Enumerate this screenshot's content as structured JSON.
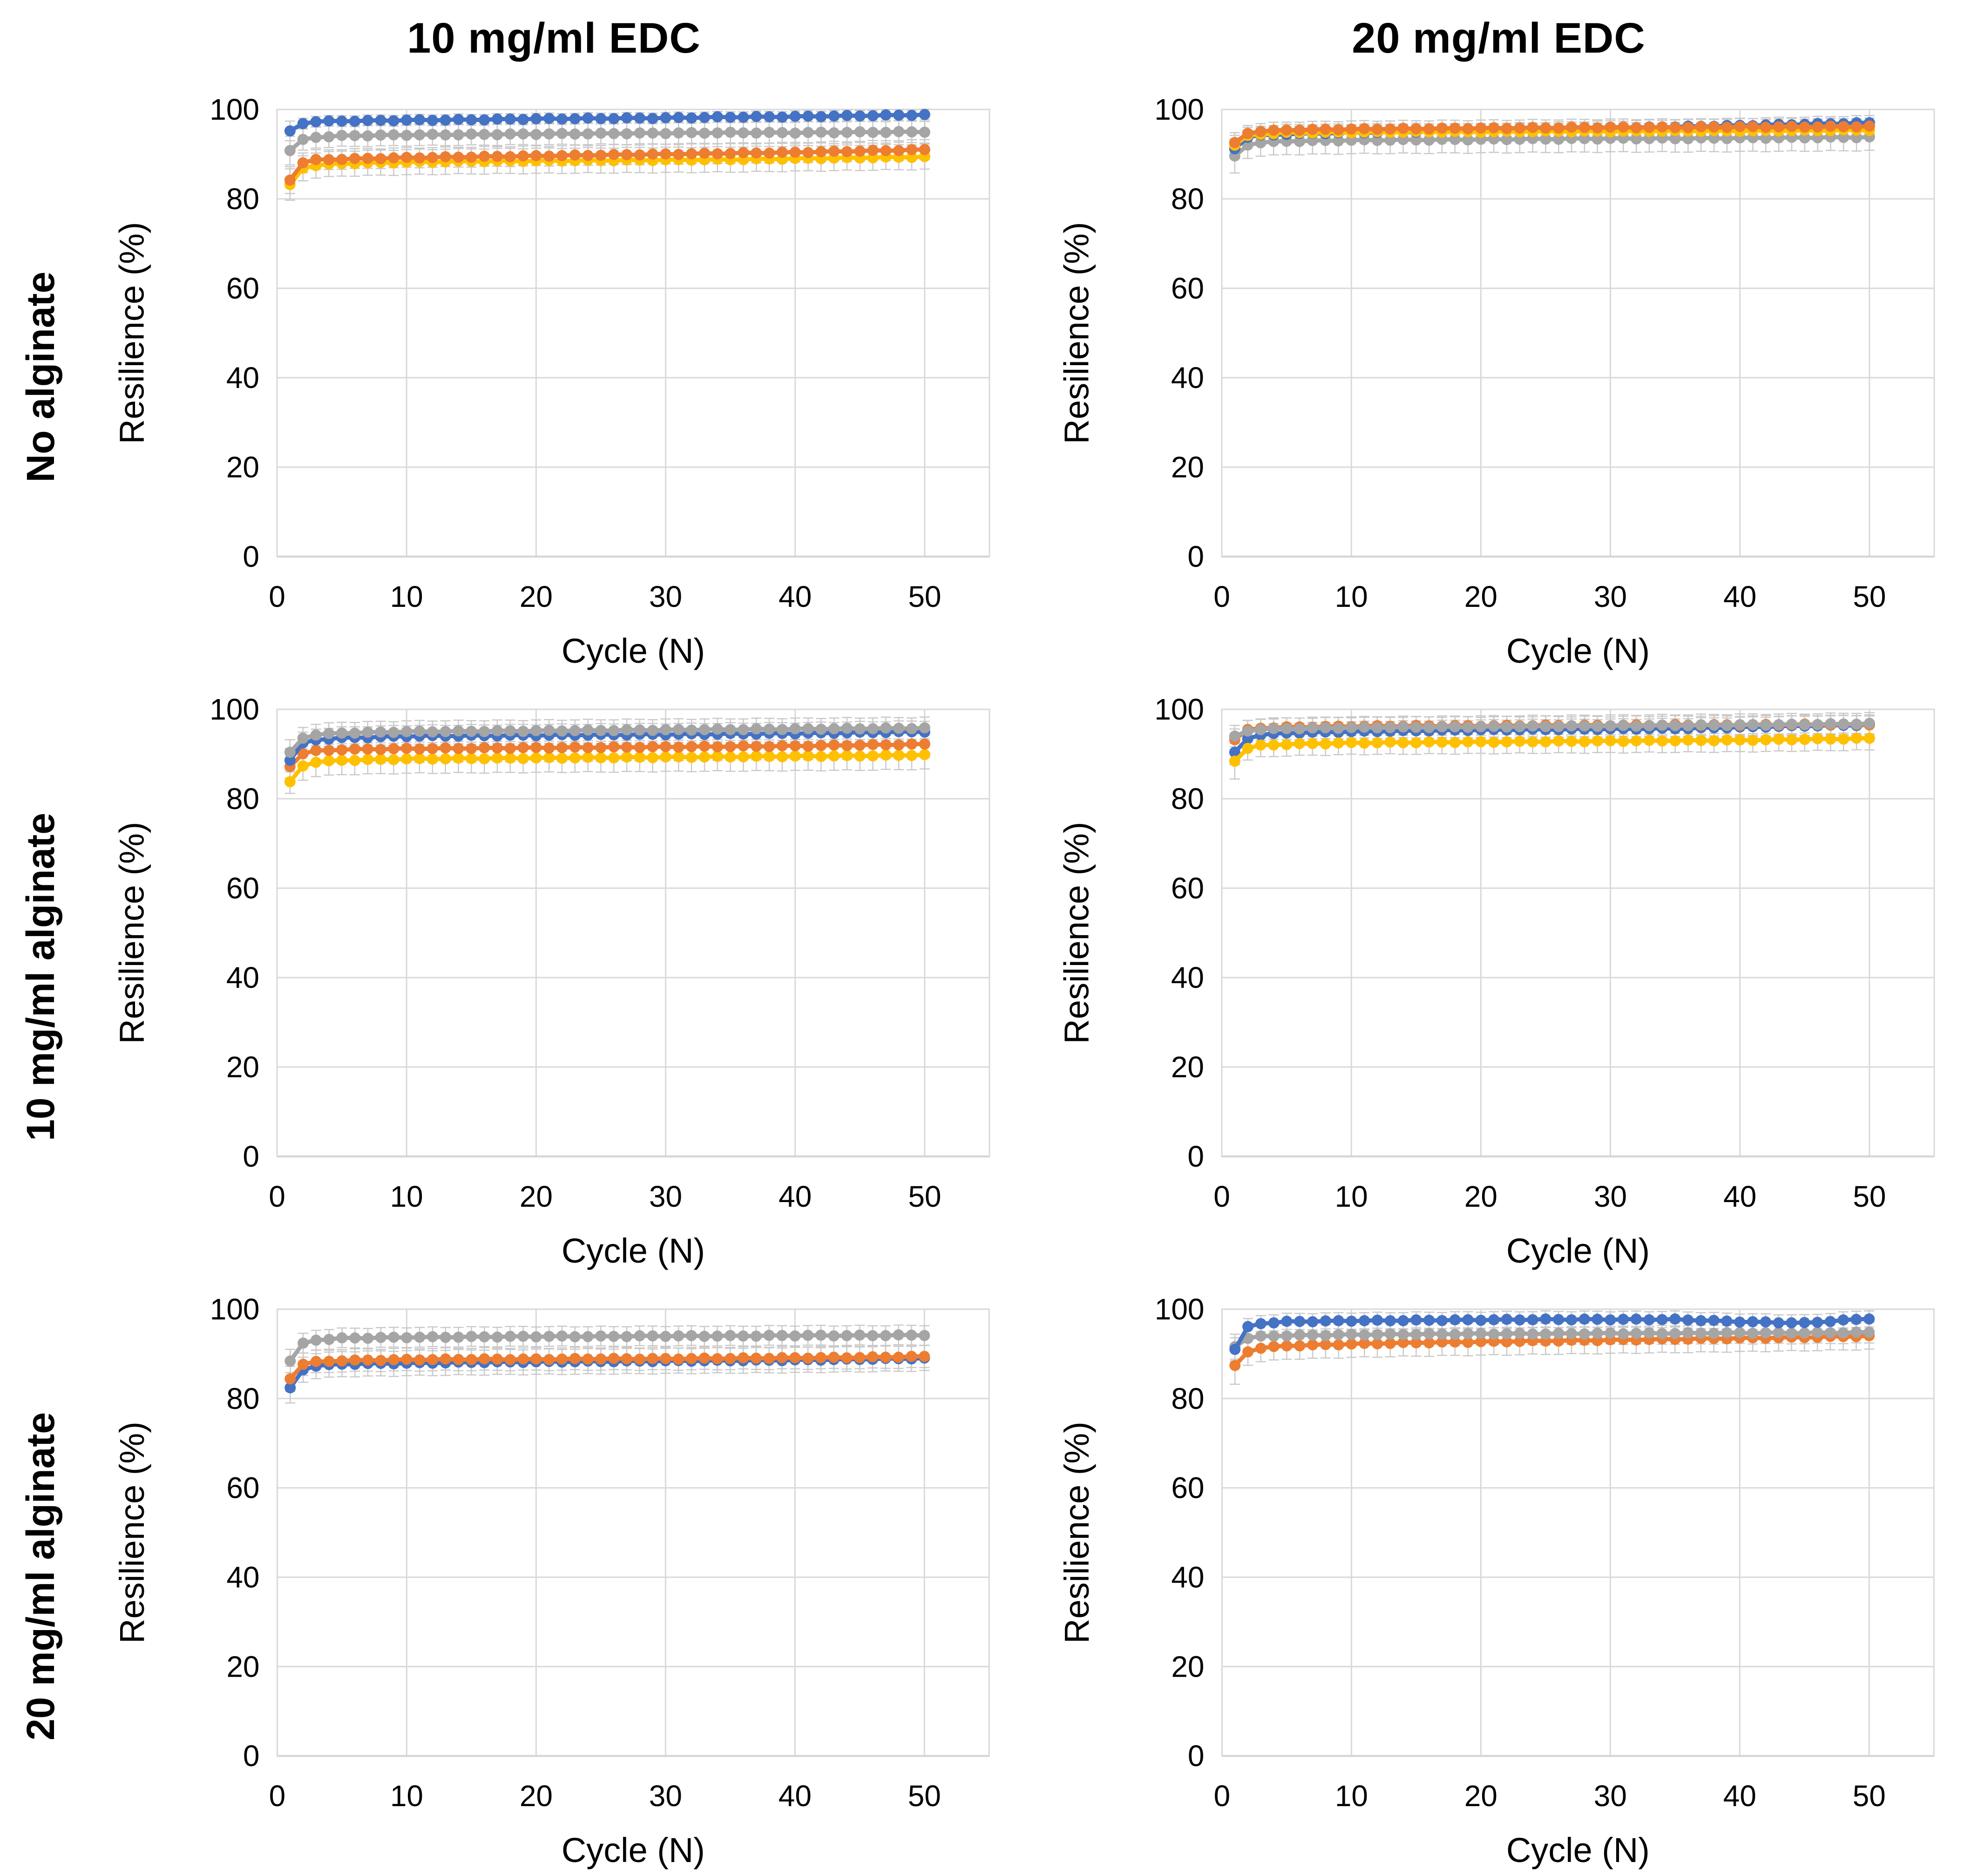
{
  "header": {
    "column_titles": [
      "10 mg/ml EDC",
      "20 mg/ml EDC"
    ]
  },
  "row_labels": [
    "No alginate",
    "10 mg/ml alginate",
    "20 mg/ml alginate"
  ],
  "axis": {
    "x_label": "Cycle (N)",
    "y_label": "Resilience (%)",
    "x_ticks": [
      0,
      10,
      20,
      30,
      40,
      50
    ],
    "y_ticks": [
      0,
      20,
      40,
      60,
      80,
      100
    ]
  },
  "colors": {
    "blue": "#4472C4",
    "orange": "#ED7D31",
    "gray": "#A5A5A5",
    "yellow": "#FFC000",
    "error_bar": "#C9C9C9",
    "gridline": "#D9D9D9",
    "axis_line": "#BFBFBF"
  },
  "render_hints": {
    "marker_jitter": 0.1,
    "legend": "none",
    "grid": "on"
  },
  "chart_data": [
    {
      "type": "line",
      "row": "No alginate",
      "column": "10 mg/ml EDC",
      "x_label": "Cycle (N)",
      "y_label": "Resilience (%)",
      "xlim": [
        0,
        55
      ],
      "ylim": [
        0,
        100
      ],
      "x_ticks": [
        0,
        10,
        20,
        30,
        40,
        50
      ],
      "y_ticks": [
        0,
        20,
        40,
        60,
        80,
        100
      ],
      "n_cycles": 50,
      "anchor_cycles": [
        1,
        2,
        3,
        5,
        10,
        15,
        20,
        25,
        30,
        35,
        40,
        45,
        50
      ],
      "series": [
        {
          "name": "yellow",
          "color_key": "yellow",
          "err": 2.8,
          "err_first": 3.5,
          "values": [
            83.2,
            86.9,
            87.5,
            87.9,
            88.2,
            88.4,
            88.5,
            88.6,
            88.7,
            88.8,
            89.0,
            89.2,
            89.4
          ]
        },
        {
          "name": "orange",
          "color_key": "orange",
          "err": 2.2,
          "err_first": 3.0,
          "values": [
            84.2,
            88.1,
            88.7,
            88.9,
            89.2,
            89.4,
            89.6,
            89.8,
            90.0,
            90.2,
            90.4,
            90.7,
            91.0
          ]
        },
        {
          "name": "gray",
          "color_key": "gray",
          "err": 2.4,
          "err_first": 3.2,
          "values": [
            90.8,
            93.2,
            93.8,
            94.1,
            94.3,
            94.4,
            94.5,
            94.6,
            94.7,
            94.8,
            94.8,
            94.9,
            95.0
          ]
        },
        {
          "name": "blue",
          "color_key": "blue",
          "err": 1.2,
          "err_first": 2.2,
          "values": [
            95.2,
            96.9,
            97.3,
            97.4,
            97.6,
            97.7,
            97.9,
            98.0,
            98.1,
            98.3,
            98.4,
            98.6,
            98.8
          ]
        }
      ]
    },
    {
      "type": "line",
      "row": "No alginate",
      "column": "20 mg/ml EDC",
      "x_label": "Cycle (N)",
      "y_label": "Resilience (%)",
      "xlim": [
        0,
        55
      ],
      "ylim": [
        0,
        100
      ],
      "x_ticks": [
        0,
        10,
        20,
        30,
        40,
        50
      ],
      "y_ticks": [
        0,
        20,
        40,
        60,
        80,
        100
      ],
      "n_cycles": 50,
      "anchor_cycles": [
        1,
        2,
        3,
        5,
        10,
        15,
        20,
        25,
        30,
        35,
        40,
        45,
        50
      ],
      "series": [
        {
          "name": "gray",
          "color_key": "gray",
          "err": 3.0,
          "err_first": 3.8,
          "values": [
            89.6,
            92.1,
            92.6,
            92.9,
            93.1,
            93.2,
            93.3,
            93.4,
            93.5,
            93.5,
            93.6,
            93.7,
            93.8
          ]
        },
        {
          "name": "blue",
          "color_key": "blue",
          "err": 1.6,
          "err_first": 2.2,
          "values": [
            91.2,
            93.8,
            94.2,
            94.5,
            94.8,
            95.0,
            95.2,
            95.5,
            95.8,
            96.1,
            96.4,
            96.7,
            97.0
          ]
        },
        {
          "name": "yellow",
          "color_key": "yellow",
          "err": 1.8,
          "err_first": 2.2,
          "values": [
            92.0,
            94.1,
            94.5,
            94.8,
            94.9,
            95.0,
            95.0,
            95.1,
            95.1,
            95.2,
            95.2,
            95.3,
            95.4
          ]
        },
        {
          "name": "orange",
          "color_key": "orange",
          "err": 1.8,
          "err_first": 2.2,
          "values": [
            92.6,
            94.7,
            95.1,
            95.4,
            95.6,
            95.7,
            95.8,
            95.9,
            96.0,
            96.0,
            96.1,
            96.1,
            96.2
          ]
        }
      ]
    },
    {
      "type": "line",
      "row": "10 mg/ml alginate",
      "column": "10 mg/ml EDC",
      "x_label": "Cycle (N)",
      "y_label": "Resilience (%)",
      "xlim": [
        0,
        55
      ],
      "ylim": [
        0,
        100
      ],
      "x_ticks": [
        0,
        10,
        20,
        30,
        40,
        50
      ],
      "y_ticks": [
        0,
        20,
        40,
        60,
        80,
        100
      ],
      "n_cycles": 50,
      "anchor_cycles": [
        1,
        2,
        3,
        5,
        10,
        15,
        20,
        25,
        30,
        35,
        40,
        45,
        50
      ],
      "series": [
        {
          "name": "yellow",
          "color_key": "yellow",
          "err": 3.2,
          "err_first": 2.6,
          "values": [
            83.8,
            87.4,
            88.2,
            88.6,
            88.9,
            89.0,
            89.1,
            89.2,
            89.3,
            89.4,
            89.5,
            89.6,
            89.8
          ]
        },
        {
          "name": "orange",
          "color_key": "orange",
          "err": 3.0,
          "err_first": 2.6,
          "values": [
            87.2,
            90.1,
            90.7,
            91.0,
            91.2,
            91.3,
            91.4,
            91.5,
            91.6,
            91.7,
            91.8,
            92.0,
            92.2
          ]
        },
        {
          "name": "blue",
          "color_key": "blue",
          "err": 2.4,
          "err_first": 2.6,
          "values": [
            88.6,
            92.4,
            93.2,
            93.6,
            94.0,
            94.1,
            94.2,
            94.3,
            94.4,
            94.5,
            94.6,
            94.8,
            95.0
          ]
        },
        {
          "name": "gray",
          "color_key": "gray",
          "err": 2.4,
          "err_first": 2.8,
          "values": [
            90.4,
            93.6,
            94.3,
            94.7,
            95.0,
            95.1,
            95.2,
            95.3,
            95.4,
            95.5,
            95.6,
            95.7,
            95.8
          ]
        }
      ]
    },
    {
      "type": "line",
      "row": "10 mg/ml alginate",
      "column": "20 mg/ml EDC",
      "x_label": "Cycle (N)",
      "y_label": "Resilience (%)",
      "xlim": [
        0,
        55
      ],
      "ylim": [
        0,
        100
      ],
      "x_ticks": [
        0,
        10,
        20,
        30,
        40,
        50
      ],
      "y_ticks": [
        0,
        20,
        40,
        60,
        80,
        100
      ],
      "n_cycles": 50,
      "anchor_cycles": [
        1,
        2,
        3,
        5,
        10,
        15,
        20,
        25,
        30,
        35,
        40,
        45,
        50
      ],
      "series": [
        {
          "name": "blue",
          "color_key": "blue",
          "err": 2.2,
          "err_first": 2.8,
          "values": [
            90.4,
            93.5,
            94.3,
            94.7,
            95.0,
            95.2,
            95.4,
            95.5,
            95.6,
            95.7,
            96.0,
            96.3,
            96.5
          ]
        },
        {
          "name": "yellow",
          "color_key": "yellow",
          "err": 2.6,
          "err_first": 4.0,
          "values": [
            88.4,
            91.3,
            91.9,
            92.2,
            92.5,
            92.6,
            92.7,
            92.8,
            92.9,
            93.0,
            93.1,
            93.3,
            93.5
          ]
        },
        {
          "name": "orange",
          "color_key": "orange",
          "err": 2.0,
          "err_first": 2.4,
          "values": [
            93.2,
            95.4,
            95.8,
            96.0,
            96.2,
            96.3,
            96.3,
            96.4,
            96.4,
            96.5,
            96.5,
            96.6,
            96.6
          ]
        },
        {
          "name": "gray",
          "color_key": "gray",
          "err": 2.4,
          "err_first": 2.4,
          "values": [
            94.0,
            95.2,
            95.5,
            95.7,
            95.9,
            96.0,
            96.1,
            96.2,
            96.3,
            96.4,
            96.5,
            96.6,
            96.8
          ]
        }
      ]
    },
    {
      "type": "line",
      "row": "20 mg/ml alginate",
      "column": "10 mg/ml EDC",
      "x_label": "Cycle (N)",
      "y_label": "Resilience (%)",
      "xlim": [
        0,
        55
      ],
      "ylim": [
        0,
        100
      ],
      "x_ticks": [
        0,
        10,
        20,
        30,
        40,
        50
      ],
      "y_ticks": [
        0,
        20,
        40,
        60,
        80,
        100
      ],
      "n_cycles": 50,
      "anchor_cycles": [
        1,
        2,
        3,
        5,
        10,
        15,
        20,
        25,
        30,
        35,
        40,
        45,
        50
      ],
      "series": [
        {
          "name": "blue",
          "color_key": "blue",
          "err": 2.8,
          "err_first": 3.4,
          "values": [
            82.4,
            86.5,
            87.3,
            87.7,
            87.9,
            88.1,
            88.2,
            88.3,
            88.4,
            88.5,
            88.6,
            88.8,
            89.0
          ]
        },
        {
          "name": "orange",
          "color_key": "orange",
          "err": 2.5,
          "err_first": 2.8,
          "values": [
            84.4,
            87.7,
            88.2,
            88.5,
            88.7,
            88.8,
            88.8,
            88.9,
            88.9,
            89.0,
            89.1,
            89.2,
            89.4
          ]
        },
        {
          "name": "gray",
          "color_key": "gray",
          "err": 2.2,
          "err_first": 2.6,
          "values": [
            88.4,
            92.3,
            93.1,
            93.5,
            93.7,
            93.8,
            93.9,
            93.9,
            94.0,
            94.0,
            94.1,
            94.1,
            94.2
          ]
        }
      ]
    },
    {
      "type": "line",
      "row": "20 mg/ml alginate",
      "column": "20 mg/ml EDC",
      "x_label": "Cycle (N)",
      "y_label": "Resilience (%)",
      "xlim": [
        0,
        55
      ],
      "ylim": [
        0,
        100
      ],
      "x_ticks": [
        0,
        10,
        20,
        30,
        40,
        50
      ],
      "y_ticks": [
        0,
        20,
        40,
        60,
        80,
        100
      ],
      "n_cycles": 50,
      "anchor_cycles": [
        1,
        2,
        3,
        5,
        10,
        15,
        20,
        25,
        30,
        35,
        40,
        45,
        50
      ],
      "series": [
        {
          "name": "orange",
          "color_key": "orange",
          "err": 3.0,
          "err_first": 4.2,
          "values": [
            87.4,
            90.5,
            91.3,
            91.8,
            92.2,
            92.5,
            92.7,
            92.9,
            93.1,
            93.3,
            93.5,
            93.7,
            94.0
          ]
        },
        {
          "name": "gray",
          "color_key": "gray",
          "err": 2.4,
          "err_first": 2.8,
          "values": [
            91.6,
            93.5,
            93.9,
            94.1,
            94.3,
            94.4,
            94.5,
            94.5,
            94.6,
            94.6,
            94.7,
            94.7,
            94.8
          ]
        },
        {
          "name": "blue",
          "color_key": "blue",
          "err": 1.8,
          "err_first": 2.6,
          "values": [
            91.0,
            96.0,
            96.8,
            97.2,
            97.4,
            97.5,
            97.6,
            97.7,
            97.7,
            97.7,
            97.2,
            96.9,
            97.9
          ]
        }
      ]
    }
  ]
}
